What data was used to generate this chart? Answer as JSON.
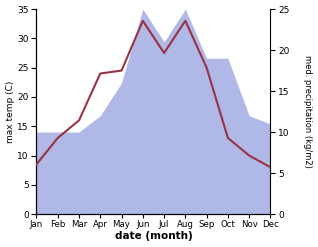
{
  "months": [
    "Jan",
    "Feb",
    "Mar",
    "Apr",
    "May",
    "Jun",
    "Jul",
    "Aug",
    "Sep",
    "Oct",
    "Nov",
    "Dec"
  ],
  "temperature": [
    8.5,
    13.0,
    16.0,
    24.0,
    24.5,
    33.0,
    27.5,
    33.0,
    25.0,
    13.0,
    10.0,
    8.0
  ],
  "precipitation": [
    10.0,
    10.0,
    10.0,
    12.0,
    16.0,
    25.0,
    21.0,
    25.0,
    19.0,
    19.0,
    12.0,
    11.0
  ],
  "temp_color": "#993344",
  "precip_color": "#b0b8e8",
  "temp_ylim": [
    0,
    35
  ],
  "precip_ylim": [
    0,
    25
  ],
  "temp_yticks": [
    0,
    5,
    10,
    15,
    20,
    25,
    30,
    35
  ],
  "precip_yticks": [
    0,
    5,
    10,
    15,
    20,
    25
  ],
  "xlabel": "date (month)",
  "ylabel_left": "max temp (C)",
  "ylabel_right": "med. precipitation (kg/m2)",
  "fig_width": 3.18,
  "fig_height": 2.47,
  "dpi": 100
}
